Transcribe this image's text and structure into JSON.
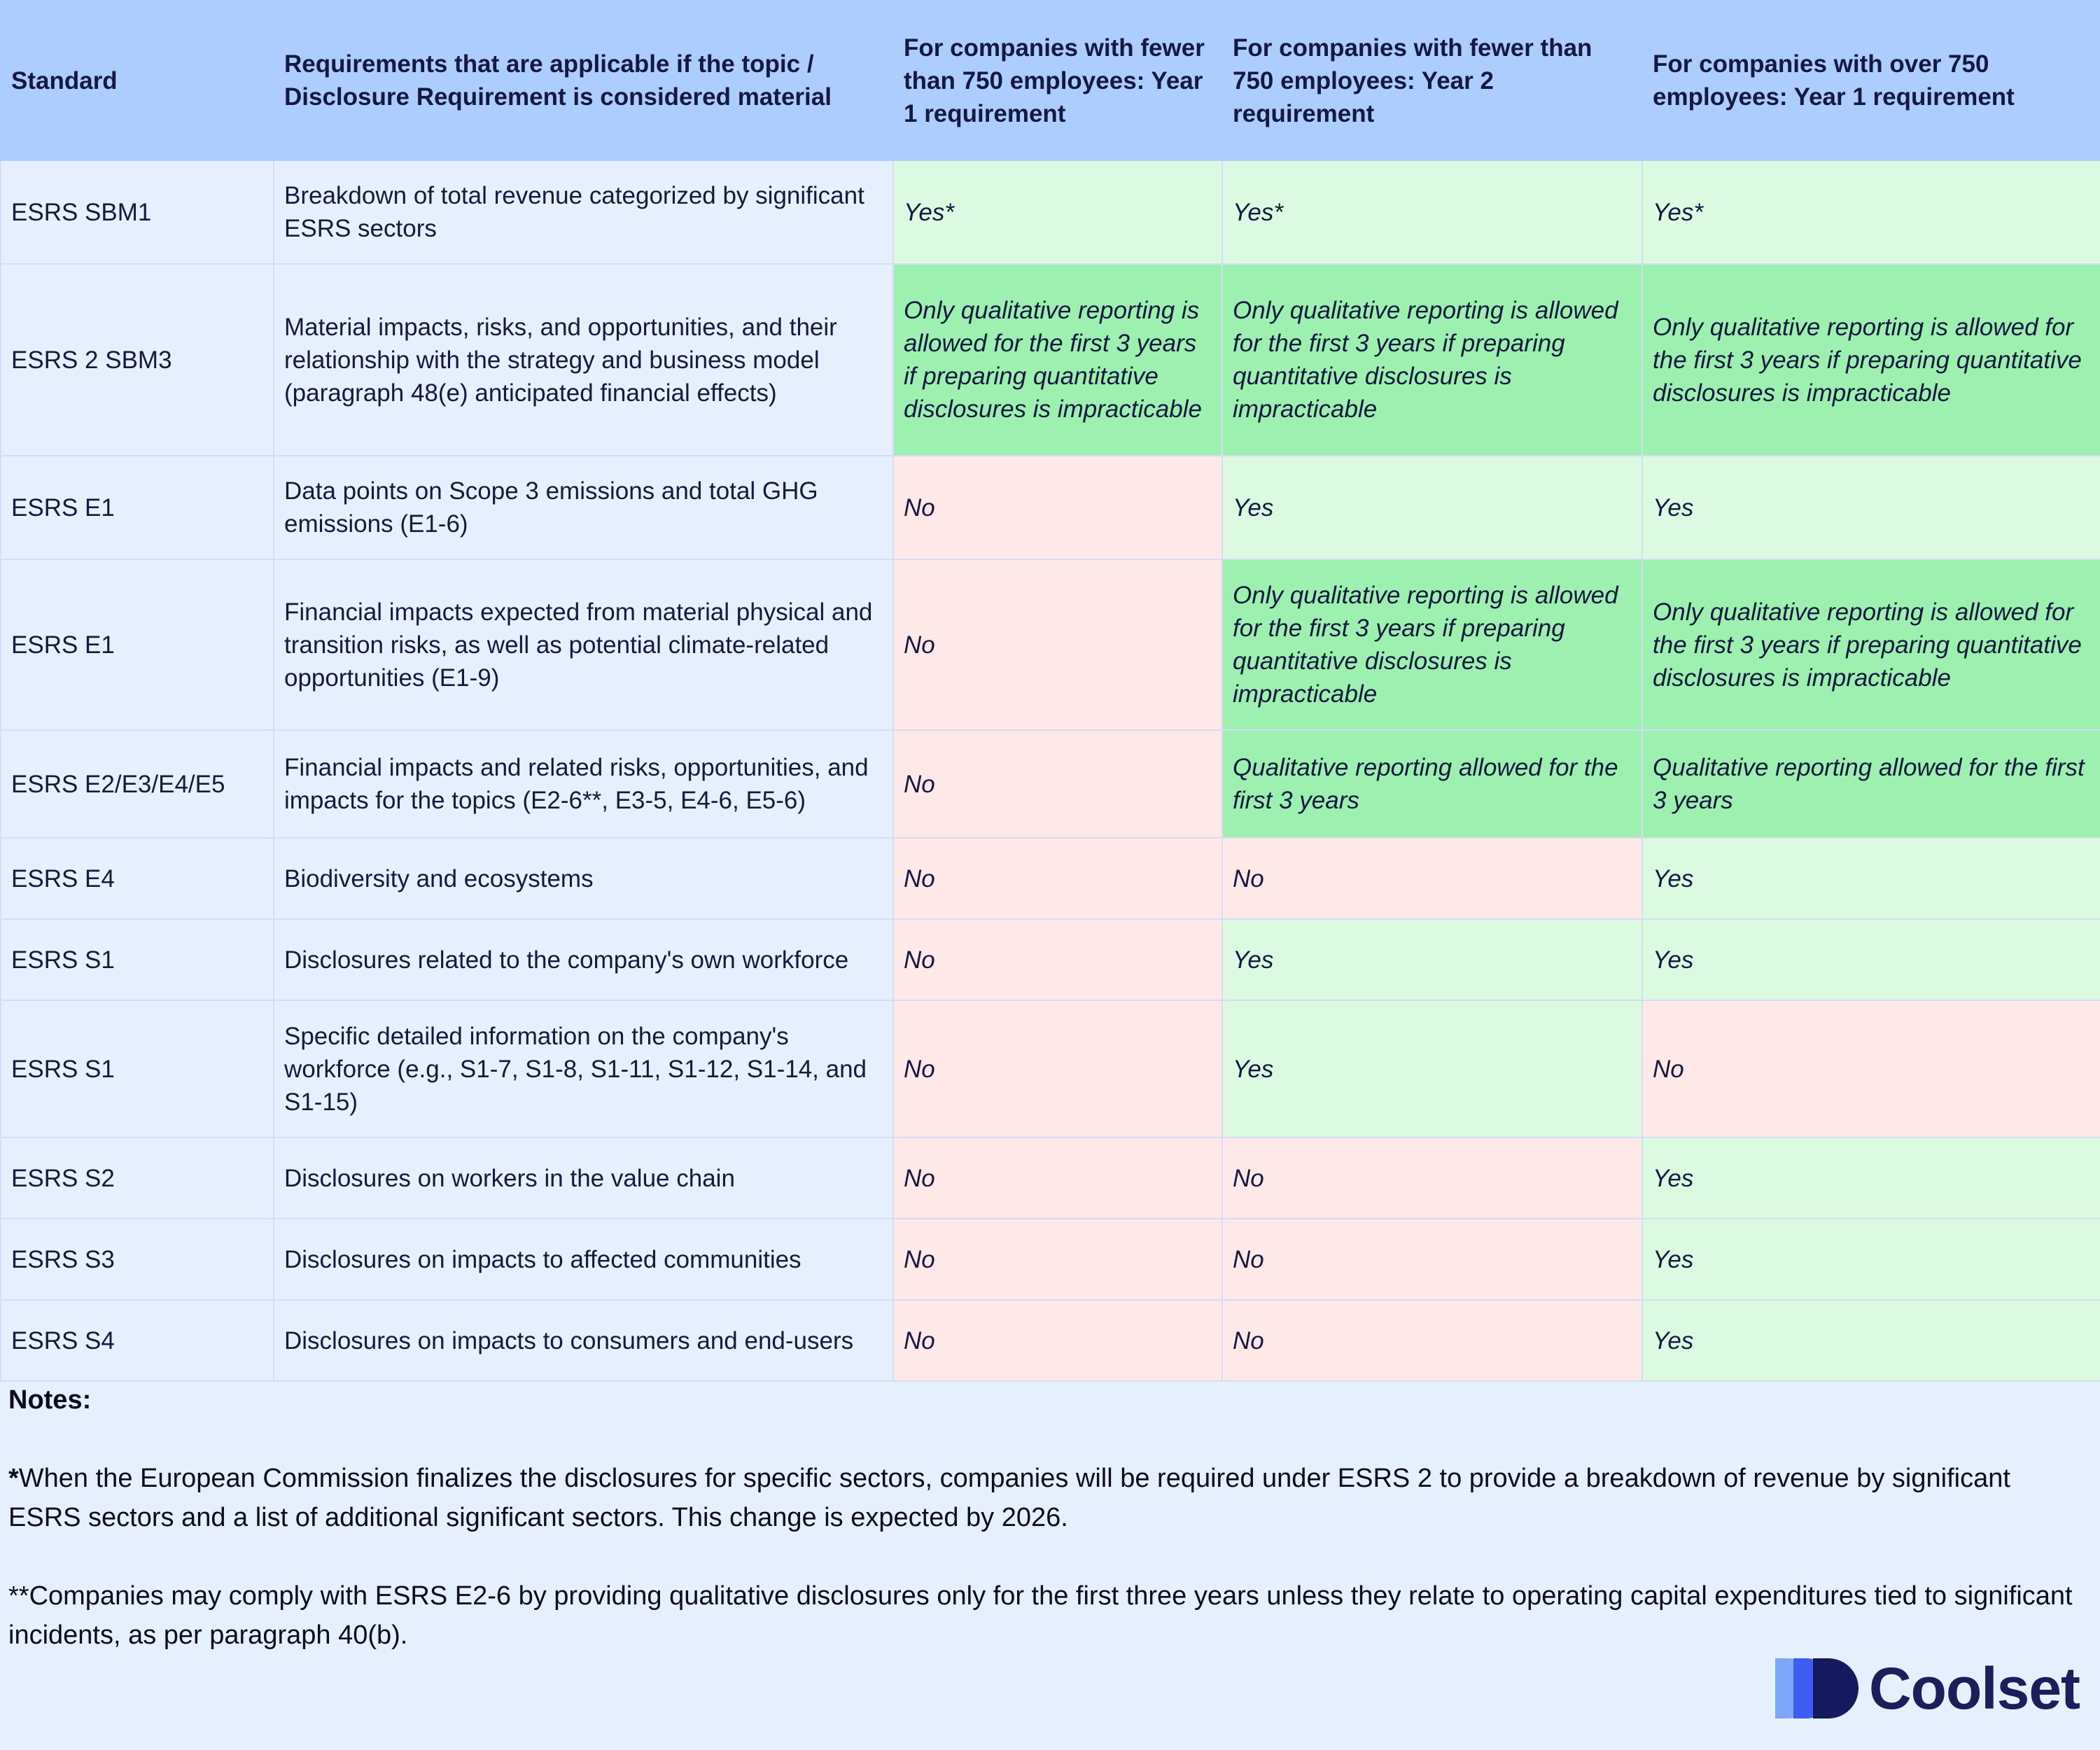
{
  "headers": [
    "Standard",
    "Requirements that are applicable if the topic / Disclosure Requirement is considered material",
    "For companies with fewer than 750 employees: Year 1 requirement",
    "For companies with fewer than 750 employees: Year 2 requirement",
    "For companies with over 750 employees: Year 1 requirement"
  ],
  "rows": [
    {
      "standard": "ESRS SBM1",
      "requirement": "Breakdown of total revenue categorized by significant ESRS sectors",
      "y1_small": "Yes*",
      "y2_small": "Yes*",
      "y1_large": "Yes*"
    },
    {
      "standard": "ESRS 2 SBM3",
      "requirement": "Material impacts, risks, and opportunities, and their relationship with the strategy and business model (paragraph 48(e) anticipated financial effects)",
      "y1_small": "Only qualitative reporting is allowed for the first 3 years if preparing quantitative disclosures is impracticable",
      "y2_small": "Only qualitative reporting is allowed for the first 3 years if preparing quantitative disclosures is impracticable",
      "y1_large": "Only qualitative reporting is allowed for the first 3 years if preparing quantitative disclosures is impracticable"
    },
    {
      "standard": "ESRS E1",
      "requirement": "Data points on Scope 3 emissions and total GHG emissions (E1-6)",
      "y1_small": "No",
      "y2_small": "Yes",
      "y1_large": "Yes"
    },
    {
      "standard": "ESRS E1",
      "requirement": "Financial impacts expected from material physical and transition risks, as well as potential climate-related opportunities (E1-9)",
      "y1_small": "No",
      "y2_small": "Only qualitative reporting is allowed for the first 3 years if preparing quantitative disclosures is impracticable",
      "y1_large": "Only qualitative reporting is allowed for the first 3 years if preparing quantitative disclosures is impracticable"
    },
    {
      "standard": "ESRS E2/E3/E4/E5",
      "requirement": "Financial impacts and related risks, opportunities, and impacts for the topics (E2-6**, E3-5, E4-6, E5-6)",
      "y1_small": "No",
      "y2_small": "Qualitative reporting allowed for the first 3 years",
      "y1_large": "Qualitative reporting allowed for the first 3 years"
    },
    {
      "standard": "ESRS E4",
      "requirement": "Biodiversity and ecosystems",
      "y1_small": "No",
      "y2_small": "No",
      "y1_large": "Yes"
    },
    {
      "standard": "ESRS S1",
      "requirement": "Disclosures related to the company's own workforce",
      "y1_small": "No",
      "y2_small": "Yes",
      "y1_large": "Yes"
    },
    {
      "standard": "ESRS S1",
      "requirement": "Specific detailed information on the company's workforce (e.g., S1-7, S1-8, S1-11, S1-12, S1-14, and S1-15)",
      "y1_small": "No",
      "y2_small": "Yes",
      "y1_large": "No"
    },
    {
      "standard": "ESRS S2",
      "requirement": "Disclosures on workers in the value chain",
      "y1_small": "No",
      "y2_small": "No",
      "y1_large": "Yes"
    },
    {
      "standard": "ESRS S3",
      "requirement": "Disclosures on impacts to affected communities",
      "y1_small": "No",
      "y2_small": "No",
      "y1_large": "Yes"
    },
    {
      "standard": "ESRS S4",
      "requirement": "Disclosures on impacts to consumers and end-users",
      "y1_small": "No",
      "y2_small": "No",
      "y1_large": "Yes"
    }
  ],
  "notes": {
    "title": "Notes:",
    "note1_marker": "*",
    "note1_text": "When the European Commission finalizes the disclosures for specific sectors, companies will be required under ESRS 2 to provide a breakdown of revenue by significant ESRS sectors and a list of additional significant sectors. This change is expected by 2026.",
    "note2": "**Companies may comply with ESRS E2-6 by providing qualitative disclosures only for the first three years unless they relate to operating capital expenditures tied to significant incidents, as per paragraph 40(b)."
  },
  "logo": {
    "wordmark": "Coolset",
    "icon": "coolset-logo-icon",
    "colors": {
      "light": "#7da8f7",
      "mid": "#3d5df0",
      "dark": "#151a5e"
    }
  },
  "colors": {
    "header_bg": "#aecdff",
    "page_bg": "#e6effd",
    "no_bg": "#ffe9e8",
    "yes_bg": "#dcfae2",
    "qualitative_bg": "#9ef0b0"
  }
}
